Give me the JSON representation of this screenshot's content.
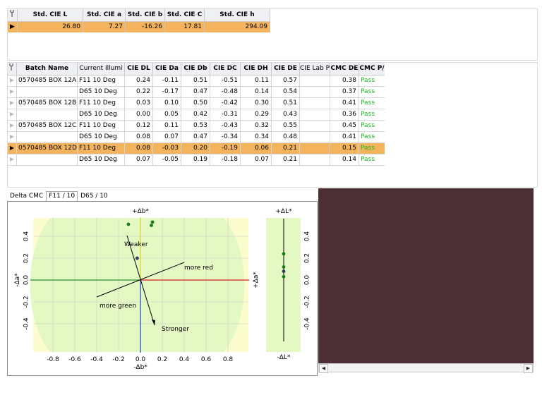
{
  "standard": {
    "headers": [
      "Std. CIE L",
      "Std. CIE a",
      "Std. CIE b",
      "Std. CIE C",
      "Std. CIE h"
    ],
    "values": [
      "26.80",
      "7.27",
      "-16.26",
      "17.81",
      "294.09"
    ]
  },
  "batch": {
    "headers": [
      "Batch Name",
      "Current Illumi",
      "CIE DL",
      "CIE Da",
      "CIE Db",
      "CIE DC",
      "CIE DH",
      "CIE DE",
      "CIE Lab P",
      "CMC DE",
      "CMC P/"
    ],
    "rows": [
      [
        "0570485 BOX 12A",
        "F11 10 Deg",
        "0.24",
        "-0.11",
        "0.51",
        "-0.51",
        "0.11",
        "0.57",
        "",
        "0.38",
        "Pass"
      ],
      [
        "",
        "D65 10 Deg",
        "0.22",
        "-0.17",
        "0.47",
        "-0.48",
        "0.14",
        "0.54",
        "",
        "0.37",
        "Pass"
      ],
      [
        "0570485 BOX 12B",
        "F11 10 Deg",
        "0.03",
        "0.10",
        "0.50",
        "-0.42",
        "0.30",
        "0.51",
        "",
        "0.41",
        "Pass"
      ],
      [
        "",
        "D65 10 Deg",
        "0.00",
        "0.05",
        "0.42",
        "-0.31",
        "0.29",
        "0.43",
        "",
        "0.36",
        "Pass"
      ],
      [
        "0570485 BOX 12C",
        "F11 10 Deg",
        "0.12",
        "0.11",
        "0.53",
        "-0.43",
        "0.32",
        "0.55",
        "",
        "0.45",
        "Pass"
      ],
      [
        "",
        "D65 10 Deg",
        "0.08",
        "0.07",
        "0.47",
        "-0.34",
        "0.34",
        "0.48",
        "",
        "0.41",
        "Pass"
      ],
      [
        "0570485 BOX 12D",
        "F11 10 Deg",
        "0.08",
        "-0.03",
        "0.20",
        "-0.19",
        "0.06",
        "0.21",
        "",
        "0.15",
        "Pass"
      ],
      [
        "",
        "D65 10 Deg",
        "0.07",
        "-0.05",
        "0.19",
        "-0.18",
        "0.07",
        "0.21",
        "",
        "0.14",
        "Pass"
      ]
    ],
    "selected_row": 6
  },
  "tabs": [
    "Delta CMC",
    "F11 / 10",
    "D65 / 10"
  ],
  "active_tab": 1,
  "plot": {
    "top_label": "+Δb*",
    "bottom_label": "-Δb*",
    "left_label": "-Δa*",
    "right_label": "+Δa*",
    "x_ticks": [
      "-0.8",
      "-0.6",
      "-0.4",
      "-0.2",
      "0.0",
      "0.2",
      "0.4",
      "0.6",
      "0.8"
    ],
    "y_ticks": [
      "0.4",
      "0.2",
      "0.0",
      "-0.2",
      "-0.4"
    ],
    "annotations": {
      "weaker": "Weaker",
      "stronger": "Stronger",
      "more_red": "more red",
      "more_green": "more green"
    },
    "l_top_label": "+ΔL*",
    "l_bottom_label": "-ΔL*",
    "l_ticks": [
      "0.4",
      "0.2",
      "0.0",
      "-0.2",
      "-0.4"
    ],
    "colors": {
      "field_light": "#fbfdcf",
      "field_green": "#e4f8c4",
      "brown_panel": "#4b2f35",
      "point_green": "#1a7a1a",
      "point_dark": "#2c3e55",
      "highlight": "#f4b45e"
    }
  },
  "chart_data": [
    {
      "type": "scatter",
      "xlabel": "-Δb*",
      "ylabel": "-Δa*",
      "xlim": [
        -1.0,
        1.0
      ],
      "ylim": [
        -0.6,
        0.6
      ],
      "x_ticks": [
        -0.8,
        -0.6,
        -0.4,
        -0.2,
        0.0,
        0.2,
        0.4,
        0.6,
        0.8
      ],
      "y_ticks": [
        0.4,
        0.2,
        0.0,
        -0.2,
        -0.4
      ],
      "series": [
        {
          "points": [
            {
              "x": -0.11,
              "y": 0.51,
              "c": "green"
            },
            {
              "x": 0.1,
              "y": 0.5,
              "c": "green"
            },
            {
              "x": 0.11,
              "y": 0.53,
              "c": "green"
            },
            {
              "x": -0.03,
              "y": 0.2,
              "c": "dark"
            }
          ]
        }
      ]
    },
    {
      "type": "scatter",
      "ylabel": "ΔL*",
      "ylim": [
        -0.6,
        0.6
      ],
      "series": [
        {
          "points": [
            {
              "y": 0.24,
              "c": "green"
            },
            {
              "y": 0.12,
              "c": "green"
            },
            {
              "y": 0.08,
              "c": "dark"
            },
            {
              "y": 0.03,
              "c": "green"
            }
          ]
        }
      ]
    }
  ]
}
